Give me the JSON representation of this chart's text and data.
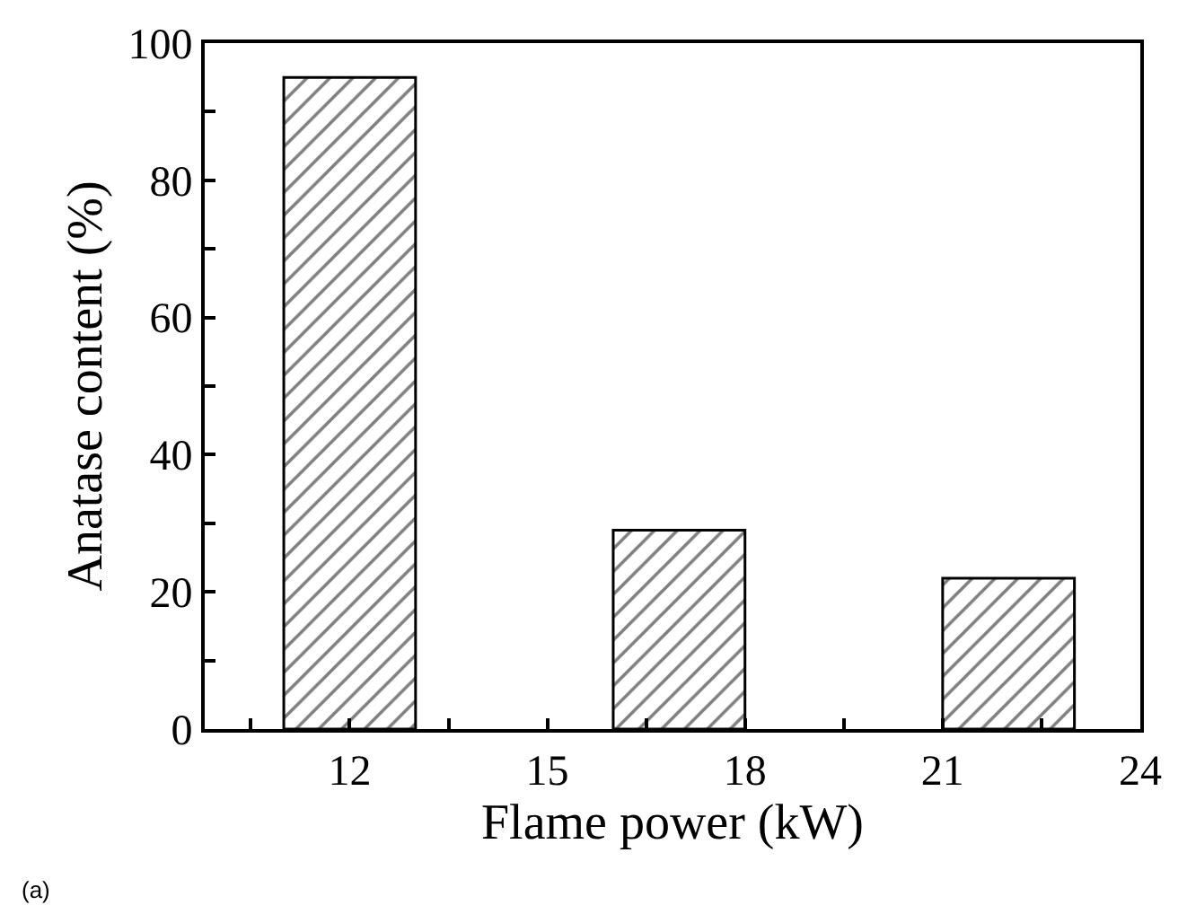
{
  "chart_data": {
    "type": "bar",
    "xlabel": "Flame power (kW)",
    "ylabel": "Anatase content (%)",
    "x": [
      12,
      17,
      22
    ],
    "values": [
      95,
      29,
      22
    ],
    "color": "#000000",
    "xlim": [
      9.8,
      24
    ],
    "xticks": [
      {
        "value": 10.5,
        "label": null
      },
      12,
      {
        "value": 13.5,
        "label": null
      },
      15,
      {
        "value": 16.5,
        "label": null
      },
      18,
      {
        "value": 19.5,
        "label": null
      },
      21,
      {
        "value": 22.5,
        "label": null
      },
      24
    ],
    "ylim": [
      0,
      100
    ],
    "yticks": [
      0,
      {
        "value": 10,
        "label": null
      },
      20,
      {
        "value": 30,
        "label": null
      },
      40,
      {
        "value": 50,
        "label": null
      },
      60,
      {
        "value": 70,
        "label": null
      },
      80,
      {
        "value": 90,
        "label": null
      },
      100
    ],
    "legend": false,
    "annotations": [
      "(a)"
    ]
  }
}
